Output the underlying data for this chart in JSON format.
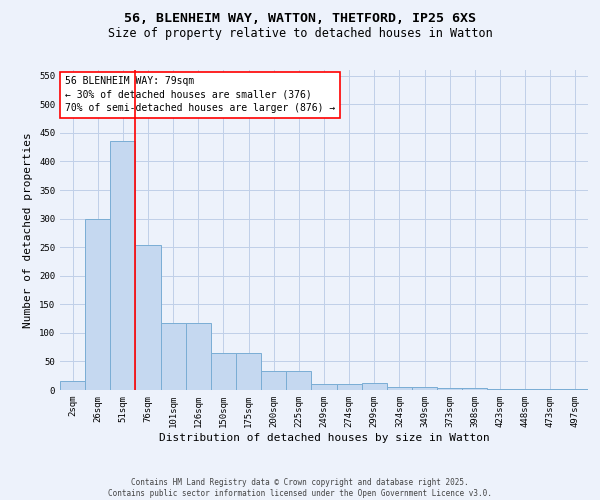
{
  "title_line1": "56, BLENHEIM WAY, WATTON, THETFORD, IP25 6XS",
  "title_line2": "Size of property relative to detached houses in Watton",
  "xlabel": "Distribution of detached houses by size in Watton",
  "ylabel": "Number of detached properties",
  "categories": [
    "2sqm",
    "26sqm",
    "51sqm",
    "76sqm",
    "101sqm",
    "126sqm",
    "150sqm",
    "175sqm",
    "200sqm",
    "225sqm",
    "249sqm",
    "274sqm",
    "299sqm",
    "324sqm",
    "349sqm",
    "373sqm",
    "398sqm",
    "423sqm",
    "448sqm",
    "473sqm",
    "497sqm"
  ],
  "values": [
    15,
    300,
    435,
    253,
    117,
    117,
    65,
    65,
    33,
    33,
    10,
    10,
    12,
    5,
    5,
    4,
    4,
    2,
    2,
    1,
    1
  ],
  "bar_color": "#c5d8f0",
  "bar_edge_color": "#7aadd4",
  "vline_x": 2.5,
  "vline_color": "red",
  "annotation_text": "56 BLENHEIM WAY: 79sqm\n← 30% of detached houses are smaller (376)\n70% of semi-detached houses are larger (876) →",
  "annotation_box_color": "white",
  "annotation_box_edge_color": "red",
  "ylim": [
    0,
    560
  ],
  "yticks": [
    0,
    50,
    100,
    150,
    200,
    250,
    300,
    350,
    400,
    450,
    500,
    550
  ],
  "background_color": "#edf2fb",
  "grid_color": "#c0cfe8",
  "footer_text": "Contains HM Land Registry data © Crown copyright and database right 2025.\nContains public sector information licensed under the Open Government Licence v3.0.",
  "title_fontsize": 9.5,
  "subtitle_fontsize": 8.5,
  "axis_label_fontsize": 8,
  "tick_fontsize": 6.5,
  "annotation_fontsize": 7,
  "footer_fontsize": 5.5
}
